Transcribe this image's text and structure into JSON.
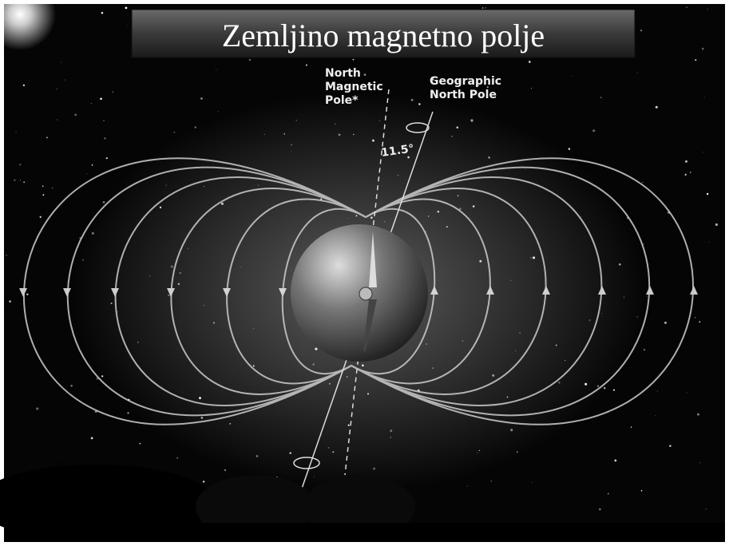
{
  "title": "Zemljino magnetno polje",
  "labels": {
    "north_magnetic_pole": [
      "North",
      "Magnetic",
      "Pole*"
    ],
    "geographic_north_pole": [
      "Geographic",
      "North Pole"
    ],
    "angle": "11.5°"
  }
}
